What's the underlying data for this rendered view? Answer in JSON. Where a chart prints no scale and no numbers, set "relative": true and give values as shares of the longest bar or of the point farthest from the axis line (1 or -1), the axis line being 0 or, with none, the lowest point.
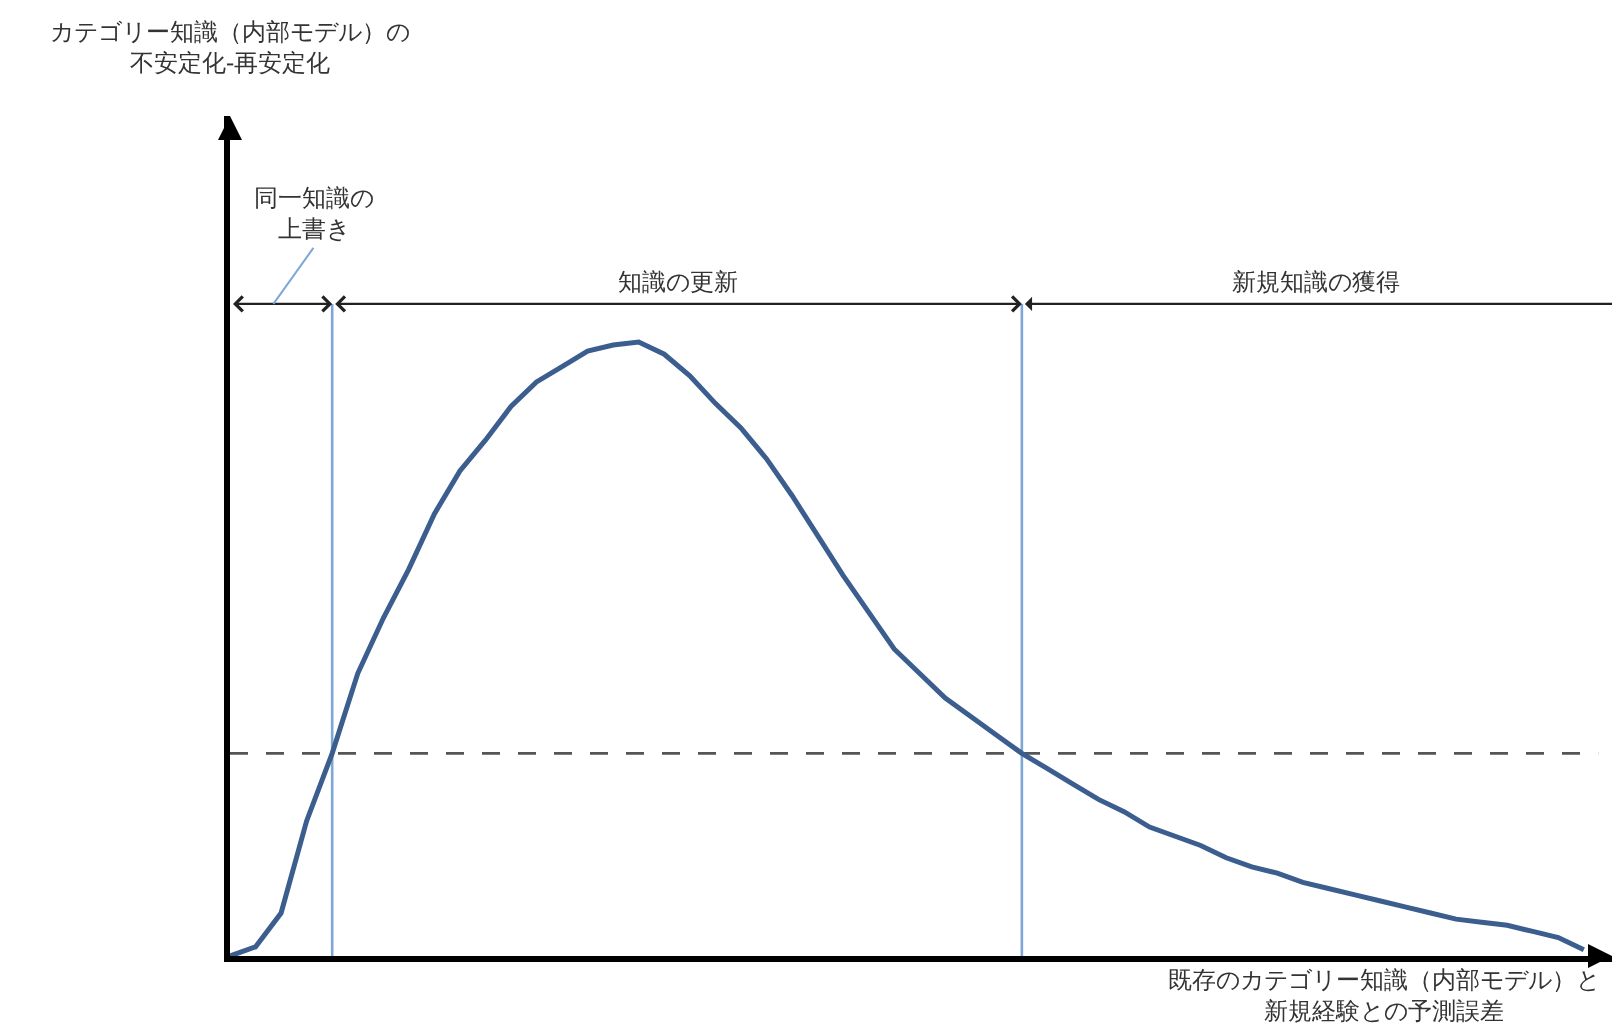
{
  "chart_data": {
    "type": "line",
    "relative": true,
    "xlabel": "既存のカテゴリー知識（内部モデル）と新規経験との予測誤差",
    "marker": "none",
    "line_style": "solid",
    "categories": [
      null,
      null,
      null,
      null,
      null,
      null,
      null,
      null,
      null,
      null,
      null,
      null,
      null,
      null,
      null,
      null,
      null,
      null,
      null,
      null,
      null,
      null,
      null,
      null,
      null,
      null,
      null,
      null,
      null,
      null,
      null,
      null,
      null,
      null,
      null,
      null,
      null,
      null,
      null,
      null,
      null,
      null,
      null,
      null,
      null,
      null,
      null,
      null,
      null,
      null,
      null,
      null,
      null,
      null
    ],
    "series": [
      {
        "color": "#3b5e8f",
        "values": [
          0,
          0.015,
          0.07,
          0.22,
          0.33,
          0.46,
          0.55,
          0.63,
          0.72,
          0.79,
          0.84,
          0.895,
          0.935,
          0.96,
          0.985,
          0.995,
          1,
          0.98,
          0.945,
          0.9,
          0.86,
          0.81,
          0.75,
          0.685,
          0.62,
          0.56,
          0.5,
          0.46,
          0.42,
          0.39,
          0.36,
          0.33,
          0.305,
          0.28,
          0.255,
          0.235,
          0.21,
          0.195,
          0.18,
          0.16,
          0.145,
          0.135,
          0.12,
          0.11,
          0.1,
          0.09,
          0.08,
          0.07,
          0.06,
          0.055,
          0.05,
          0.04,
          0.03,
          0.01
        ]
      }
    ],
    "ref_lines": [
      {
        "axis": "y",
        "value": 0.33,
        "color": "#555555",
        "line_style": "dashed"
      }
    ],
    "annotations": [
      "カテゴリー知識（内部モデル）の不安定化-再安定化",
      "同一知識の上書き",
      "知識の更新",
      "新規知識の獲得"
    ]
  }
}
